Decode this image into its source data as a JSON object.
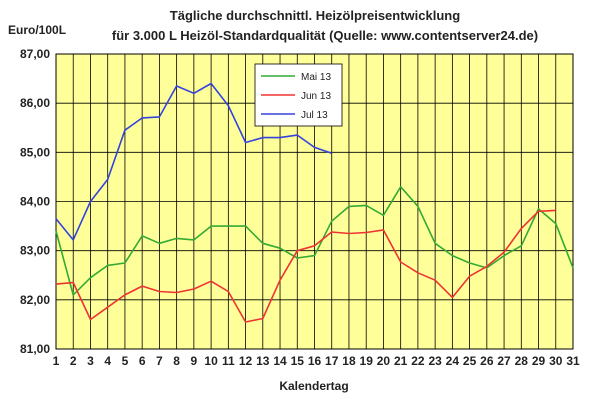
{
  "chart_data": {
    "type": "line",
    "title_line1": "Tägliche durchschnittl. Heizölpreisentwicklung",
    "title_line2": "für 3.000 L Heizöl-Standardqualität (Quelle: www.contentserver24.de)",
    "ylabel": "Euro/100L",
    "xlabel": "Kalendertag",
    "ylim": [
      81,
      87
    ],
    "yticks": [
      "81,00",
      "82,00",
      "83,00",
      "84,00",
      "85,00",
      "86,00",
      "87,00"
    ],
    "x": [
      1,
      2,
      3,
      4,
      5,
      6,
      7,
      8,
      9,
      10,
      11,
      12,
      13,
      14,
      15,
      16,
      17,
      18,
      19,
      20,
      21,
      22,
      23,
      24,
      25,
      26,
      27,
      28,
      29,
      30,
      31
    ],
    "xticks": [
      "1",
      "2",
      "3",
      "4",
      "5",
      "6",
      "7",
      "8",
      "9",
      "10",
      "11",
      "12",
      "13",
      "14",
      "15",
      "16",
      "17",
      "18",
      "19",
      "20",
      "21",
      "22",
      "23",
      "24",
      "25",
      "26",
      "27",
      "28",
      "29",
      "30",
      "31"
    ],
    "grid": true,
    "plot_background": "#ffff99",
    "legend_placement": "top-right",
    "series": [
      {
        "name": "Mai 13",
        "color": "#33aa33",
        "values": [
          83.4,
          82.1,
          82.45,
          82.7,
          82.75,
          83.3,
          83.15,
          83.25,
          83.22,
          83.5,
          83.5,
          83.5,
          83.15,
          83.05,
          82.85,
          82.9,
          83.6,
          83.9,
          83.92,
          83.72,
          84.3,
          83.9,
          83.15,
          82.9,
          82.75,
          82.65,
          82.9,
          83.1,
          83.85,
          83.55,
          82.65
        ]
      },
      {
        "name": "Jun 13",
        "color": "#ee3333",
        "values": [
          82.32,
          82.35,
          81.6,
          81.85,
          82.1,
          82.28,
          82.17,
          82.15,
          82.22,
          82.38,
          82.17,
          81.55,
          81.62,
          82.4,
          83.0,
          83.1,
          83.38,
          83.35,
          83.37,
          83.42,
          82.77,
          82.55,
          82.4,
          82.05,
          82.48,
          82.68,
          82.97,
          83.45,
          83.8,
          83.82,
          null
        ]
      },
      {
        "name": "Jul 13",
        "color": "#3344dd",
        "values": [
          83.65,
          83.22,
          84.0,
          84.45,
          85.45,
          85.7,
          85.72,
          86.35,
          86.2,
          86.4,
          85.95,
          85.2,
          85.3,
          85.3,
          85.35,
          85.1,
          84.98,
          null,
          null,
          null,
          null,
          null,
          null,
          null,
          null,
          null,
          null,
          null,
          null,
          null,
          null
        ]
      }
    ]
  }
}
